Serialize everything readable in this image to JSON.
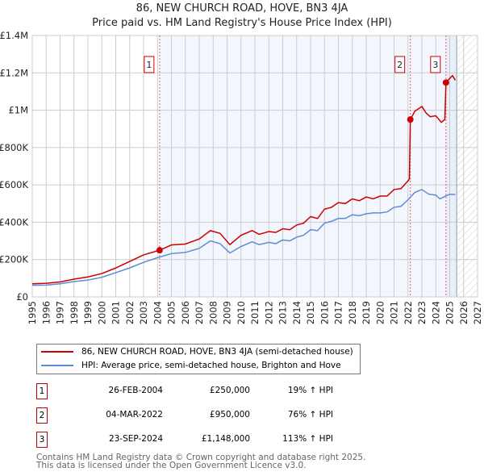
{
  "chart_data": {
    "type": "line",
    "title": "86, NEW CHURCH ROAD, HOVE, BN3 4JA",
    "subtitle": "Price paid vs. HM Land Registry's House Price Index (HPI)",
    "xlim": [
      1995,
      2027
    ],
    "ylim": [
      0,
      1400000
    ],
    "x_ticks": [
      "1995",
      "1996",
      "1997",
      "1998",
      "1999",
      "2000",
      "2001",
      "2002",
      "2003",
      "2004",
      "2005",
      "2006",
      "2007",
      "2008",
      "2009",
      "2010",
      "2011",
      "2012",
      "2013",
      "2014",
      "2015",
      "2016",
      "2017",
      "2018",
      "2019",
      "2020",
      "2021",
      "2022",
      "2023",
      "2024",
      "2025",
      "2026",
      "2027"
    ],
    "y_ticks": [
      {
        "v": 0,
        "l": "£0"
      },
      {
        "v": 200000,
        "l": "£200K"
      },
      {
        "v": 400000,
        "l": "£400K"
      },
      {
        "v": 600000,
        "l": "£600K"
      },
      {
        "v": 800000,
        "l": "£800K"
      },
      {
        "v": 1000000,
        "l": "£1M"
      },
      {
        "v": 1200000,
        "l": "£1.2M"
      },
      {
        "v": 1400000,
        "l": "£1.4M"
      }
    ],
    "grid": true,
    "series": [
      {
        "name": "86, NEW CHURCH ROAD, HOVE, BN3 4JA (semi-detached house)",
        "color": "#cc0000",
        "x": [
          1995,
          1996,
          1997,
          1998,
          1999,
          2000,
          2001,
          2002,
          2003,
          2004.15,
          2005,
          2006,
          2007,
          2007.8,
          2008.5,
          2009.2,
          2010,
          2010.8,
          2011.3,
          2012,
          2012.5,
          2013,
          2013.5,
          2014,
          2014.5,
          2015,
          2015.5,
          2016,
          2016.5,
          2017,
          2017.5,
          2018,
          2018.5,
          2019,
          2019.5,
          2020,
          2020.5,
          2021,
          2021.5,
          2022.1,
          2022.17,
          2022.5,
          2023,
          2023.3,
          2023.6,
          2024,
          2024.4,
          2024.65,
          2024.73,
          2025,
          2025.2,
          2025.4
        ],
        "y": [
          70000,
          73000,
          80000,
          95000,
          107000,
          125000,
          155000,
          190000,
          225000,
          250000,
          278000,
          283000,
          310000,
          355000,
          340000,
          280000,
          330000,
          355000,
          335000,
          350000,
          345000,
          365000,
          360000,
          385000,
          395000,
          430000,
          420000,
          470000,
          480000,
          505000,
          500000,
          525000,
          515000,
          535000,
          525000,
          540000,
          540000,
          575000,
          580000,
          630000,
          950000,
          995000,
          1020000,
          985000,
          965000,
          970000,
          935000,
          950000,
          1148000,
          1170000,
          1185000,
          1160000
        ]
      },
      {
        "name": "HPI: Average price, semi-detached house, Brighton and Hove",
        "color": "#5b8dd6",
        "x": [
          1995,
          1996,
          1997,
          1998,
          1999,
          2000,
          2001,
          2002,
          2003,
          2004,
          2005,
          2006,
          2007,
          2007.8,
          2008.5,
          2009.2,
          2010,
          2010.8,
          2011.3,
          2012,
          2012.5,
          2013,
          2013.5,
          2014,
          2014.5,
          2015,
          2015.5,
          2016,
          2016.5,
          2017,
          2017.5,
          2018,
          2018.5,
          2019,
          2019.5,
          2020,
          2020.5,
          2021,
          2021.5,
          2022,
          2022.5,
          2023,
          2023.5,
          2024,
          2024.3,
          2024.7,
          2025,
          2025.4
        ],
        "y": [
          62000,
          63000,
          70000,
          82000,
          90000,
          105000,
          130000,
          155000,
          185000,
          210000,
          232000,
          238000,
          260000,
          300000,
          285000,
          235000,
          270000,
          295000,
          280000,
          292000,
          285000,
          305000,
          300000,
          320000,
          330000,
          360000,
          355000,
          395000,
          405000,
          420000,
          420000,
          440000,
          435000,
          445000,
          450000,
          450000,
          455000,
          480000,
          485000,
          520000,
          560000,
          575000,
          550000,
          545000,
          525000,
          540000,
          550000,
          548000
        ]
      }
    ],
    "sales": [
      {
        "label": "1",
        "x": 2004.15,
        "date": "26-FEB-2004",
        "price": "£250,000",
        "value": 250000,
        "hpi": "19% ↑ HPI"
      },
      {
        "label": "2",
        "x": 2022.17,
        "date": "04-MAR-2022",
        "price": "£950,000",
        "value": 950000,
        "hpi": "76% ↑ HPI"
      },
      {
        "label": "3",
        "x": 2024.73,
        "date": "23-SEP-2024",
        "price": "£1,148,000",
        "value": 1148000,
        "hpi": "113% ↑ HPI"
      }
    ],
    "data_end": 2025.5
  },
  "footer": [
    "Contains HM Land Registry data © Crown copyright and database right 2025.",
    "This data is licensed under the Open Government Licence v3.0."
  ]
}
